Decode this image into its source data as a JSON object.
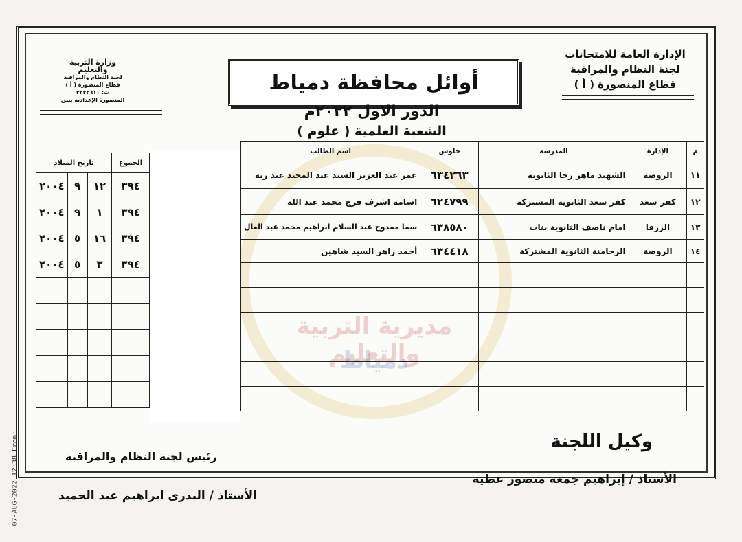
{
  "header": {
    "org_lines": [
      "الإدارة العامة للامتحانات",
      "لجنة النظام والمراقبة",
      "قطاع المنصورة ( أ )"
    ],
    "stamp_lines": [
      "وزارة التربية والتعليم",
      "لجنة النظام والمراقبة",
      "قطاع المنصورة ( أ )",
      "ت: ٣٢٢٢٦١٠",
      "المنصورة الإعدادية بنين"
    ],
    "title": "أوائل محافظة دمياط",
    "round": "الدور الاول ٢٠٢٢م",
    "division": "الشعبة العلمية ( علوم )"
  },
  "main_table": {
    "headers": {
      "index": "م",
      "administration": "الإدارة",
      "school": "المدرسة",
      "seat": "جلوس",
      "student": "اسم الطالب"
    },
    "rows": [
      {
        "index": "١١",
        "administration": "الروضة",
        "school": "الشهيد ماهر رخا الثانوية",
        "seat": "٦٣٤٢٦٣",
        "student": "عمر عبد العزيز السيد عبد المجيد عبد ربه"
      },
      {
        "index": "١٢",
        "administration": "كفر سعد",
        "school": "كفر سعد الثانوية المشتركة",
        "seat": "٦٢٤٧٩٩",
        "student": "اسامة اشرف فرج محمد عبد الله"
      },
      {
        "index": "١٣",
        "administration": "الزرقا",
        "school": "امام ناصف الثانوية بنات",
        "seat": "٦٣٨٥٨٠",
        "student": "سما ممدوح عبد السلام ابراهيم محمد عبد العال"
      },
      {
        "index": "١٤",
        "administration": "الروضة",
        "school": "الرحامنة الثانوية المشتركة",
        "seat": "٦٣٤٤١٨",
        "student": "أحمد زاهر السيد شاهين"
      }
    ]
  },
  "side_table": {
    "headers": {
      "total": "الجموع",
      "birth_date": "تاريخ الميلاد"
    },
    "rows": [
      {
        "total": "٣٩٤",
        "day": "١٢",
        "month": "٩",
        "year": "٢٠٠٤"
      },
      {
        "total": "٣٩٤",
        "day": "١",
        "month": "٩",
        "year": "٢٠٠٤"
      },
      {
        "total": "٣٩٤",
        "day": "١٦",
        "month": "٥",
        "year": "٢٠٠٤"
      },
      {
        "total": "٣٩٤",
        "day": "٣",
        "month": "٥",
        "year": "٢٠٠٤"
      }
    ]
  },
  "watermark": {
    "line1": "مديرية التربية والتعليم",
    "line2": "دمياط"
  },
  "footer": {
    "deputy_title": "وكيل اللجنة",
    "deputy_name": "الأستاذ / إبراهيم جمعه منصور عطية",
    "head_title": "رئيس لجنة النظام والمراقبة",
    "head_name": "الأستاذ / البدرى ابراهيم عبد الحميد"
  },
  "fax_stamp": "07-AUG-2022 12:38 From:"
}
